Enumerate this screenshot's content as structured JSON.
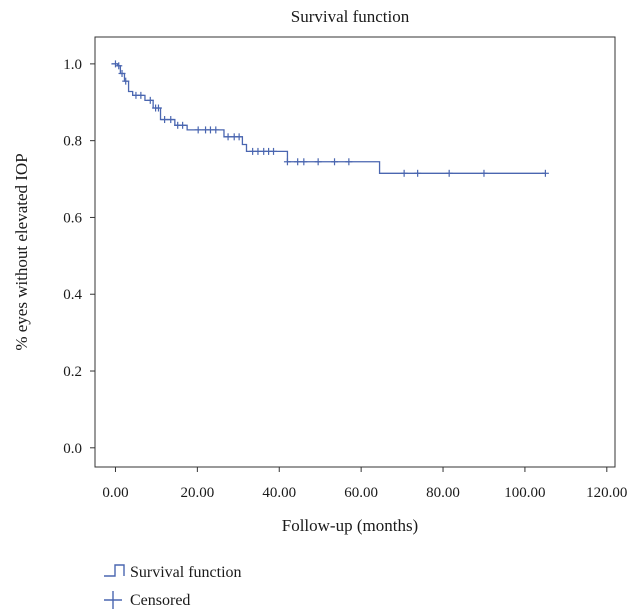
{
  "chart_data": {
    "type": "line",
    "title": "Survival function",
    "xlabel": "Follow-up (months)",
    "ylabel": "% eyes without elevated IOP",
    "xlim": [
      -5,
      122
    ],
    "ylim": [
      -0.05,
      1.07
    ],
    "x_ticks": [
      0,
      20,
      40,
      60,
      80,
      100,
      120
    ],
    "x_tick_labels": [
      "0.00",
      "20.00",
      "40.00",
      "60.00",
      "80.00",
      "100.00",
      "120.00"
    ],
    "y_ticks": [
      0.0,
      0.2,
      0.4,
      0.6,
      0.8,
      1.0
    ],
    "y_tick_labels": [
      "0.0",
      "0.2",
      "0.4",
      "0.6",
      "0.8",
      "1.0"
    ],
    "grid": false,
    "legend_position": "bottom-left",
    "color": "#4a66b0",
    "series": [
      {
        "name": "Survival function",
        "kind": "step",
        "x": [
          -1,
          0.5,
          1.2,
          2.2,
          3.2,
          4.2,
          7.2,
          9.2,
          11,
          14.5,
          17.5,
          26.5,
          31,
          32,
          40.5,
          42,
          64.5,
          105
        ],
        "y": [
          1.0,
          0.995,
          0.975,
          0.955,
          0.928,
          0.918,
          0.905,
          0.885,
          0.855,
          0.84,
          0.828,
          0.81,
          0.79,
          0.772,
          0.772,
          0.745,
          0.715,
          0.715
        ]
      },
      {
        "name": "Censored",
        "kind": "markers",
        "x": [
          0,
          0.8,
          1.6,
          2.5,
          5.0,
          6.2,
          8.5,
          9.8,
          10.5,
          12.0,
          13.5,
          15.2,
          16.4,
          20.2,
          22.0,
          23.2,
          24.5,
          27.5,
          29.0,
          30.2,
          33.5,
          34.8,
          36.2,
          37.4,
          38.6,
          42.0,
          44.5,
          46.0,
          49.5,
          53.5,
          57.0,
          70.5,
          73.8,
          81.5,
          90.0,
          105.0
        ],
        "y": [
          1.0,
          0.995,
          0.975,
          0.955,
          0.918,
          0.918,
          0.905,
          0.885,
          0.885,
          0.855,
          0.855,
          0.84,
          0.84,
          0.828,
          0.828,
          0.828,
          0.828,
          0.81,
          0.81,
          0.81,
          0.772,
          0.772,
          0.772,
          0.772,
          0.772,
          0.745,
          0.745,
          0.745,
          0.745,
          0.745,
          0.745,
          0.715,
          0.715,
          0.715,
          0.715,
          0.715
        ]
      }
    ]
  },
  "legend": {
    "items": [
      {
        "label": "Survival function",
        "symbol": "step-icon"
      },
      {
        "label": "Censored",
        "symbol": "plus-icon"
      }
    ]
  }
}
